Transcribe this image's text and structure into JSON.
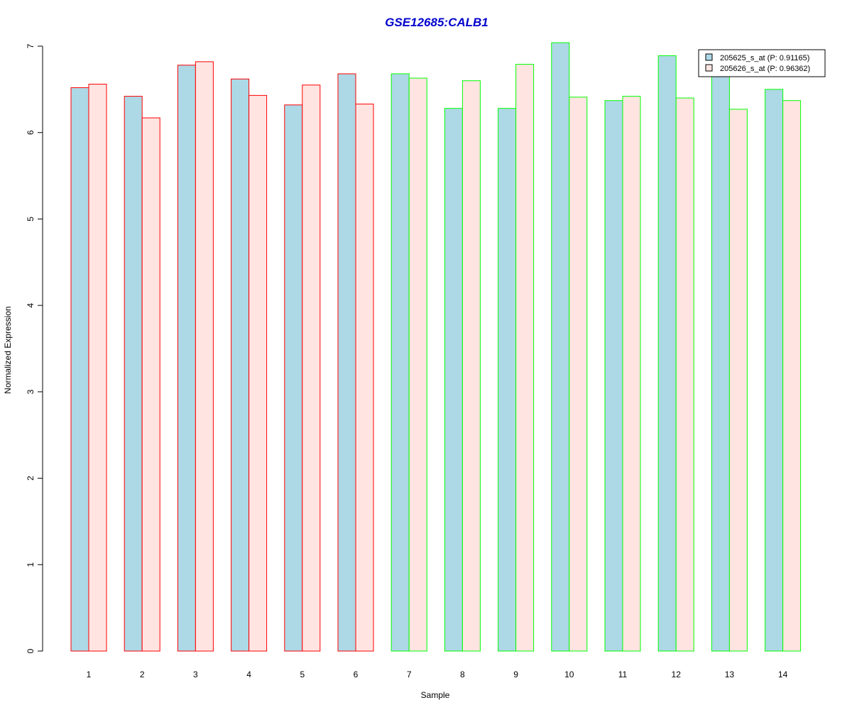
{
  "chart_data": {
    "type": "bar",
    "title": "GSE12685:CALB1",
    "xlabel": "Sample",
    "ylabel": "Normalized Expression",
    "categories": [
      "1",
      "2",
      "3",
      "4",
      "5",
      "6",
      "7",
      "8",
      "9",
      "10",
      "11",
      "12",
      "13",
      "14"
    ],
    "series": [
      {
        "name": "205625_s_at (P: 0.91165)",
        "fill": "#add8e6",
        "values": [
          6.52,
          6.42,
          6.78,
          6.62,
          6.32,
          6.68,
          6.68,
          6.28,
          6.28,
          7.04,
          6.37,
          6.89,
          6.65,
          6.5
        ]
      },
      {
        "name": "205626_s_at (P: 0.96362)",
        "fill": "#ffe4e1",
        "values": [
          6.56,
          6.17,
          6.82,
          6.43,
          6.55,
          6.33,
          6.63,
          6.6,
          6.79,
          6.41,
          6.42,
          6.4,
          6.27,
          6.37
        ]
      }
    ],
    "group_border_colors": [
      "#ff0000",
      "#ff0000",
      "#ff0000",
      "#ff0000",
      "#ff0000",
      "#ff0000",
      "#00ff00",
      "#00ff00",
      "#00ff00",
      "#00ff00",
      "#00ff00",
      "#00ff00",
      "#00ff00",
      "#00ff00"
    ],
    "yticks": [
      0,
      1,
      2,
      3,
      4,
      5,
      6,
      7
    ],
    "ylim": [
      0,
      7
    ],
    "title_color": "#0000cd",
    "legend_position": "top-right",
    "grid": false
  }
}
